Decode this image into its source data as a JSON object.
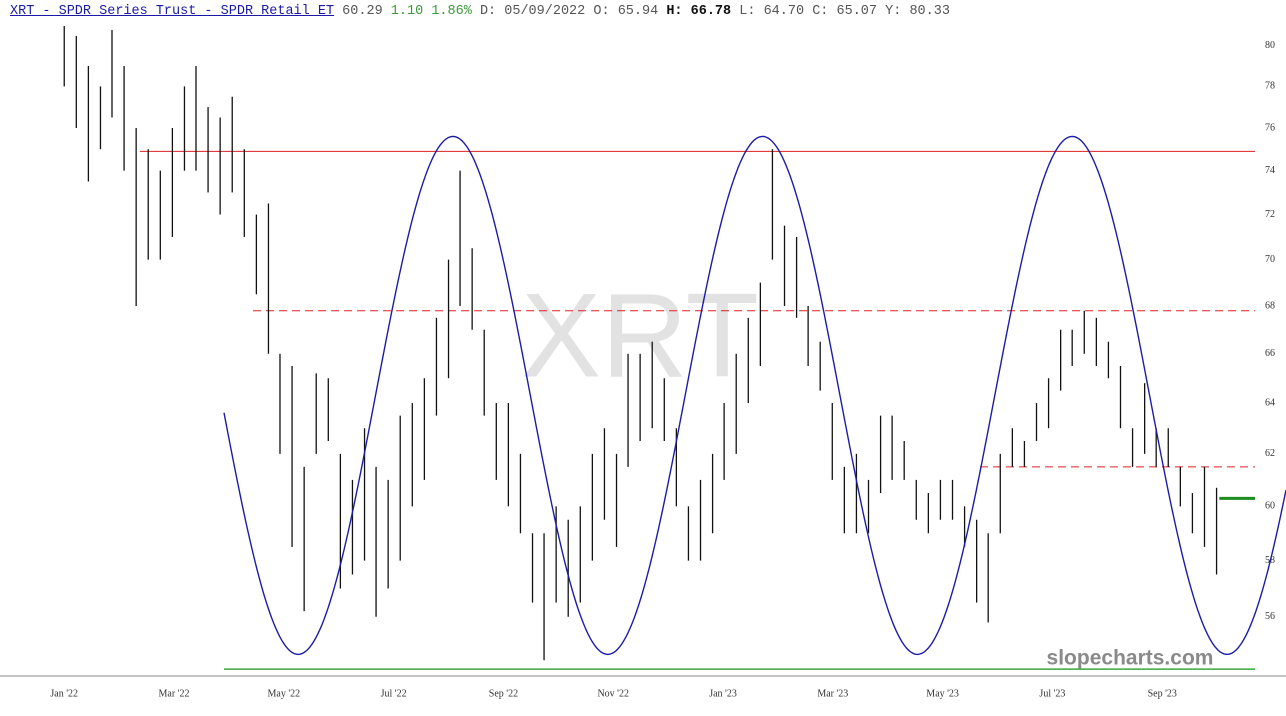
{
  "header": {
    "title": "XRT - SPDR Series Trust - SPDR Retail ET",
    "last": "60.29",
    "change": "1.10",
    "change_pct": "1.86%",
    "fields": [
      {
        "label": "D:",
        "value": "05/09/2022"
      },
      {
        "label": "O:",
        "value": "65.94"
      },
      {
        "label": "H:",
        "value": "66.78"
      },
      {
        "label": "L:",
        "value": "64.70"
      },
      {
        "label": "C:",
        "value": "65.07"
      },
      {
        "label": "Y:",
        "value": "80.33"
      }
    ]
  },
  "chart_data": {
    "type": "ohlc",
    "watermark": "XRT",
    "credit": "slopecharts.com",
    "color": "#111111",
    "log_scale": true,
    "xlim": [
      -1.17,
      21.69
    ],
    "ylim": [
      54,
      81
    ],
    "xticks": [
      {
        "value": 0,
        "label": "Jan '22"
      },
      {
        "value": 2,
        "label": "Mar '22"
      },
      {
        "value": 4,
        "label": "May '22"
      },
      {
        "value": 6,
        "label": "Jul '22"
      },
      {
        "value": 8,
        "label": "Sep '22"
      },
      {
        "value": 10,
        "label": "Nov '22"
      },
      {
        "value": 12,
        "label": "Jan '23"
      },
      {
        "value": 14,
        "label": "Mar '23"
      },
      {
        "value": 16,
        "label": "May '23"
      },
      {
        "value": 18,
        "label": "Jul '23"
      },
      {
        "value": 20,
        "label": "Sep '23"
      }
    ],
    "yticks": [
      56,
      58,
      60,
      62,
      64,
      66,
      68,
      70,
      72,
      74,
      76,
      78,
      80
    ],
    "x": [
      0,
      0.22,
      0.44,
      0.66,
      0.87,
      1.09,
      1.31,
      1.53,
      1.75,
      1.97,
      2.19,
      2.4,
      2.62,
      2.84,
      3.06,
      3.28,
      3.5,
      3.72,
      3.93,
      4.15,
      4.37,
      4.59,
      4.81,
      5.03,
      5.25,
      5.47,
      5.68,
      5.9,
      6.12,
      6.34,
      6.56,
      6.78,
      7,
      7.21,
      7.43,
      7.65,
      7.87,
      8.09,
      8.31,
      8.53,
      8.74,
      8.96,
      9.18,
      9.4,
      9.62,
      9.84,
      10.06,
      10.27,
      10.49,
      10.71,
      10.93,
      11.15,
      11.37,
      11.59,
      11.81,
      12.02,
      12.24,
      12.46,
      12.68,
      12.9,
      13.12,
      13.34,
      13.55,
      13.77,
      13.99,
      14.21,
      14.43,
      14.65,
      14.87,
      15.08,
      15.3,
      15.52,
      15.74,
      15.96,
      16.18,
      16.4,
      16.62,
      16.83,
      17.05,
      17.27,
      17.49,
      17.71,
      17.93,
      18.15,
      18.36,
      18.58,
      18.8,
      19.02,
      19.24,
      19.46,
      19.68,
      19.89,
      20.11,
      20.33,
      20.55,
      20.77,
      20.99
    ],
    "high": [
      81,
      80.5,
      79,
      78,
      80.8,
      79,
      76,
      75,
      74,
      76,
      78,
      79,
      77,
      76.5,
      77.5,
      75,
      72,
      72.5,
      66,
      65.5,
      61.5,
      65.2,
      65,
      62,
      61,
      63,
      61.5,
      61,
      63.5,
      64,
      65,
      67.5,
      70,
      74,
      70.5,
      67,
      64,
      64,
      62,
      59,
      59,
      60,
      59.5,
      60,
      62,
      63,
      62,
      66,
      66,
      66.5,
      65,
      63,
      60,
      61,
      62,
      64,
      66,
      67.5,
      69,
      75,
      71.5,
      71,
      68,
      66.5,
      64,
      61.5,
      62,
      61,
      63.5,
      63.5,
      62.5,
      61,
      60.5,
      61,
      61,
      60,
      59.5,
      59,
      62,
      63,
      62.5,
      64,
      65,
      67,
      67,
      67.8,
      67.5,
      66.5,
      65.5,
      63,
      64.8,
      63,
      63,
      61.5,
      60.5,
      61.5,
      60.7
    ],
    "low": [
      78,
      76,
      73.5,
      75,
      76.5,
      74,
      68,
      70,
      70,
      71,
      74,
      74,
      73,
      72,
      73,
      71,
      68.5,
      66,
      62,
      58.5,
      56.2,
      62,
      62.5,
      57,
      57.5,
      58,
      56,
      57,
      58,
      60,
      61,
      63.5,
      65,
      68,
      67,
      63.5,
      61,
      60,
      59,
      56.5,
      54.5,
      56.5,
      56,
      56.5,
      58,
      59.5,
      58.5,
      61.5,
      62.5,
      63,
      62.5,
      60,
      58,
      58,
      59,
      61,
      62,
      64,
      65.5,
      70,
      68,
      67.5,
      65.5,
      64.5,
      61,
      59,
      59,
      59,
      60.5,
      61,
      61,
      59.5,
      59,
      59.5,
      59.5,
      58.5,
      56.5,
      55.8,
      59,
      61.5,
      61.5,
      62.5,
      63,
      64.5,
      65.5,
      66,
      65.5,
      65,
      63,
      61.5,
      62,
      61.5,
      61.5,
      60,
      59,
      58.5,
      57.5
    ],
    "hlines": [
      {
        "value": 74.9,
        "x_start": 1.38,
        "color": "#e02020",
        "style": "solid",
        "width": 1
      },
      {
        "value": 67.8,
        "x_start": 3.44,
        "color": "#e02020",
        "style": "dashed",
        "width": 1
      },
      {
        "value": 61.5,
        "x_start": 16.68,
        "color": "#e02020",
        "style": "dashed",
        "width": 1
      },
      {
        "value": 54.2,
        "x_start": 2.91,
        "color": "#3aa83a",
        "style": "solid",
        "width": 1.5
      },
      {
        "value": 60.3,
        "x_start": 21.04,
        "color": "#1e8c1e",
        "style": "solid",
        "width": 3
      }
    ],
    "cycle": {
      "x_start": 2.91,
      "first_trough_x": 4.26,
      "period": 5.64,
      "peak": 75.6,
      "trough": 54.7,
      "color": "#1c1ca8"
    }
  }
}
